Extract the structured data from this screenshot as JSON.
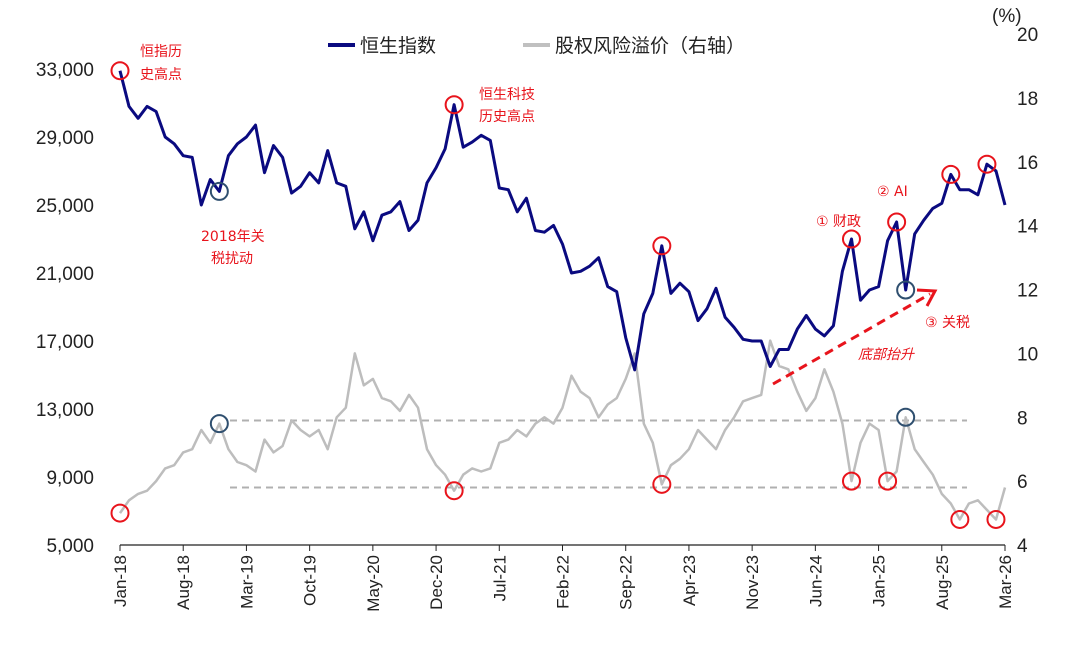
{
  "chart_data": {
    "type": "line",
    "title": "",
    "right_axis_unit": "(%)",
    "legend_placement": "top-center",
    "grid": false,
    "x_tick_labels": [
      "Jan-18",
      "Aug-18",
      "Mar-19",
      "Oct-19",
      "May-20",
      "Dec-20",
      "Jul-21",
      "Feb-22",
      "Sep-22",
      "Apr-23",
      "Nov-23",
      "Jun-24",
      "Jan-25",
      "Aug-25",
      "Mar-26"
    ],
    "x_range": [
      "2018-01",
      "2026-03"
    ],
    "y_left": {
      "ticks": [
        "5,000",
        "9,000",
        "13,000",
        "17,000",
        "21,000",
        "25,000",
        "29,000",
        "33,000"
      ],
      "range": [
        5000,
        33000
      ]
    },
    "y_right": {
      "ticks": [
        "4",
        "6",
        "8",
        "10",
        "12",
        "14",
        "16",
        "18",
        "20"
      ],
      "range": [
        4,
        20
      ]
    },
    "colors": {
      "hsi": "#0a0a80",
      "erp": "#bdbdbd",
      "annotation": "#e8141c",
      "blue_circle": "#2f4f6f",
      "dashed": "#b0b0b0"
    },
    "x": [
      "2018-01",
      "2018-02",
      "2018-03",
      "2018-04",
      "2018-05",
      "2018-06",
      "2018-07",
      "2018-08",
      "2018-09",
      "2018-10",
      "2018-11",
      "2018-12",
      "2019-01",
      "2019-02",
      "2019-03",
      "2019-04",
      "2019-05",
      "2019-06",
      "2019-07",
      "2019-08",
      "2019-09",
      "2019-10",
      "2019-11",
      "2019-12",
      "2020-01",
      "2020-02",
      "2020-03",
      "2020-04",
      "2020-05",
      "2020-06",
      "2020-07",
      "2020-08",
      "2020-09",
      "2020-10",
      "2020-11",
      "2020-12",
      "2021-01",
      "2021-02",
      "2021-03",
      "2021-04",
      "2021-05",
      "2021-06",
      "2021-07",
      "2021-08",
      "2021-09",
      "2021-10",
      "2021-11",
      "2021-12",
      "2022-01",
      "2022-02",
      "2022-03",
      "2022-04",
      "2022-05",
      "2022-06",
      "2022-07",
      "2022-08",
      "2022-09",
      "2022-10",
      "2022-11",
      "2022-12",
      "2023-01",
      "2023-02",
      "2023-03",
      "2023-04",
      "2023-05",
      "2023-06",
      "2023-07",
      "2023-08",
      "2023-09",
      "2023-10",
      "2023-11",
      "2023-12",
      "2024-01",
      "2024-02",
      "2024-03",
      "2024-04",
      "2024-05",
      "2024-06",
      "2024-07",
      "2024-08",
      "2024-09",
      "2024-10",
      "2024-11",
      "2024-12",
      "2025-01",
      "2025-02",
      "2025-03",
      "2025-04",
      "2025-05",
      "2025-06",
      "2025-07",
      "2025-08",
      "2025-09",
      "2025-10",
      "2025-11",
      "2025-12",
      "2026-01",
      "2026-02",
      "2026-03"
    ],
    "series": [
      {
        "name": "恒生指数",
        "axis": "left",
        "values": [
          32900,
          30800,
          30100,
          30800,
          30500,
          29000,
          28600,
          27900,
          27800,
          25000,
          26500,
          25800,
          27900,
          28600,
          29000,
          29700,
          26900,
          28500,
          27800,
          25700,
          26100,
          26900,
          26300,
          28200,
          26300,
          26100,
          23600,
          24600,
          22900,
          24400,
          24600,
          25200,
          23500,
          24100,
          26300,
          27200,
          28300,
          30900,
          28400,
          28700,
          29100,
          28800,
          26000,
          25900,
          24600,
          25400,
          23500,
          23400,
          23800,
          22700,
          21000,
          21100,
          21400,
          21900,
          20200,
          19900,
          17200,
          15300,
          18600,
          19800,
          22600,
          19800,
          20400,
          19900,
          18200,
          18900,
          20100,
          18400,
          17800,
          17100,
          17000,
          17000,
          15500,
          16500,
          16500,
          17700,
          18500,
          17700,
          17300,
          17900,
          21100,
          23000,
          19400,
          20000,
          20200,
          22900,
          24000,
          20000,
          23300,
          24100,
          24800,
          25100,
          26800,
          25900,
          25900,
          25600,
          27400,
          27000,
          25000
        ]
      },
      {
        "name": "股权风险溢价（右轴）",
        "axis": "right",
        "values": [
          5.0,
          5.4,
          5.6,
          5.7,
          6.0,
          6.4,
          6.5,
          6.9,
          7.0,
          7.6,
          7.2,
          7.8,
          7.0,
          6.6,
          6.5,
          6.3,
          7.3,
          6.9,
          7.1,
          7.9,
          7.6,
          7.4,
          7.6,
          7.0,
          8.0,
          8.3,
          10.0,
          9.0,
          9.2,
          8.6,
          8.5,
          8.2,
          8.7,
          8.3,
          7.0,
          6.5,
          6.2,
          5.7,
          6.2,
          6.4,
          6.3,
          6.4,
          7.2,
          7.3,
          7.6,
          7.4,
          7.8,
          8.0,
          7.8,
          8.3,
          9.3,
          8.8,
          8.6,
          8.0,
          8.4,
          8.6,
          9.2,
          10.0,
          7.8,
          7.2,
          5.9,
          6.5,
          6.7,
          7.0,
          7.6,
          7.3,
          7.0,
          7.6,
          8.0,
          8.5,
          8.6,
          8.7,
          10.4,
          9.6,
          9.5,
          8.8,
          8.2,
          8.6,
          9.5,
          8.8,
          7.8,
          6.0,
          7.2,
          7.8,
          7.6,
          6.0,
          6.3,
          8.0,
          7.0,
          6.6,
          6.2,
          5.6,
          5.3,
          4.8,
          5.3,
          5.4,
          5.1,
          4.8,
          5.8
        ]
      }
    ],
    "reference_lines": [
      {
        "axis": "right",
        "value": 7.9,
        "style": "dashed"
      },
      {
        "axis": "right",
        "value": 5.8,
        "style": "dashed"
      }
    ],
    "markers": [
      {
        "series": "恒生指数",
        "x": "2018-01",
        "color": "red"
      },
      {
        "series": "恒生指数",
        "x": "2021-02",
        "color": "red"
      },
      {
        "series": "恒生指数",
        "x": "2023-01",
        "color": "red"
      },
      {
        "series": "恒生指数",
        "x": "2024-10",
        "color": "red"
      },
      {
        "series": "恒生指数",
        "x": "2025-03",
        "color": "red"
      },
      {
        "series": "恒生指数",
        "x": "2025-09",
        "color": "red"
      },
      {
        "series": "恒生指数",
        "x": "2026-01",
        "color": "red"
      },
      {
        "series": "恒生指数",
        "x": "2018-12",
        "color": "blue"
      },
      {
        "series": "恒生指数",
        "x": "2025-04",
        "color": "blue"
      },
      {
        "series": "股权风险溢价（右轴）",
        "x": "2018-01",
        "color": "red"
      },
      {
        "series": "股权风险溢价（右轴）",
        "x": "2021-02",
        "color": "red"
      },
      {
        "series": "股权风险溢价（右轴）",
        "x": "2023-01",
        "color": "red"
      },
      {
        "series": "股权风险溢价（右轴）",
        "x": "2024-10",
        "color": "red"
      },
      {
        "series": "股权风险溢价（右轴）",
        "x": "2025-02",
        "color": "red"
      },
      {
        "series": "股权风险溢价（右轴）",
        "x": "2025-10",
        "color": "red"
      },
      {
        "series": "股权风险溢价（右轴）",
        "x": "2026-02",
        "color": "red"
      },
      {
        "series": "股权风险溢价（右轴）",
        "x": "2018-12",
        "color": "blue"
      },
      {
        "series": "股权风险溢价（右轴）",
        "x": "2025-04",
        "color": "blue"
      }
    ],
    "annotations": {
      "hsi_high": [
        "恒指历",
        "史高点"
      ],
      "hstech_high": [
        "恒生科技",
        "历史高点"
      ],
      "tariff_2018": [
        "2018年关",
        "税扰动"
      ],
      "fiscal": "① 财政",
      "ai": "② AI",
      "tariff": "③ 关税",
      "bottom_rising": "底部抬升"
    }
  }
}
